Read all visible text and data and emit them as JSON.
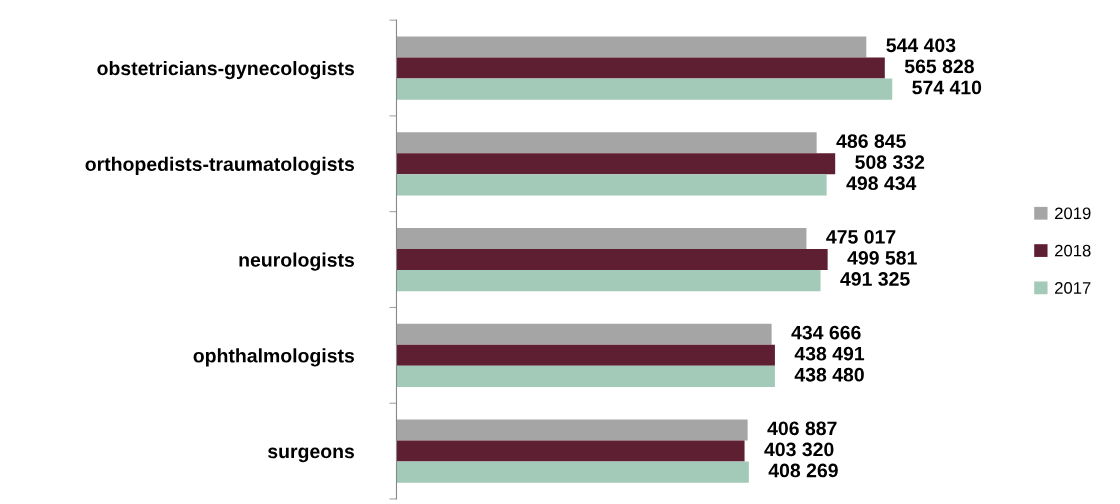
{
  "chart_data": {
    "type": "bar",
    "orientation": "horizontal",
    "categories": [
      "obstetricians-gynecologists",
      "orthopedists-traumatologists",
      "neurologists",
      "ophthalmologists",
      "surgeons"
    ],
    "series": [
      {
        "name": "2019",
        "color": "#a5a5a5",
        "values": [
          544403,
          486845,
          475017,
          434666,
          406887
        ],
        "value_labels": [
          "544 403",
          "486 845",
          "475 017",
          "434 666",
          "406 887"
        ]
      },
      {
        "name": "2018",
        "color": "#5e1f33",
        "values": [
          565828,
          508332,
          499581,
          438491,
          403320
        ],
        "value_labels": [
          "565 828",
          "508 332",
          "499 581",
          "438 491",
          "403 320"
        ]
      },
      {
        "name": "2017",
        "color": "#a3c9b8",
        "values": [
          574410,
          498434,
          491325,
          438480,
          408269
        ],
        "value_labels": [
          "574 410",
          "498 434",
          "491 325",
          "438 480",
          "408 269"
        ]
      }
    ],
    "tick_labels": "y",
    "grid": false,
    "legend": "right"
  }
}
